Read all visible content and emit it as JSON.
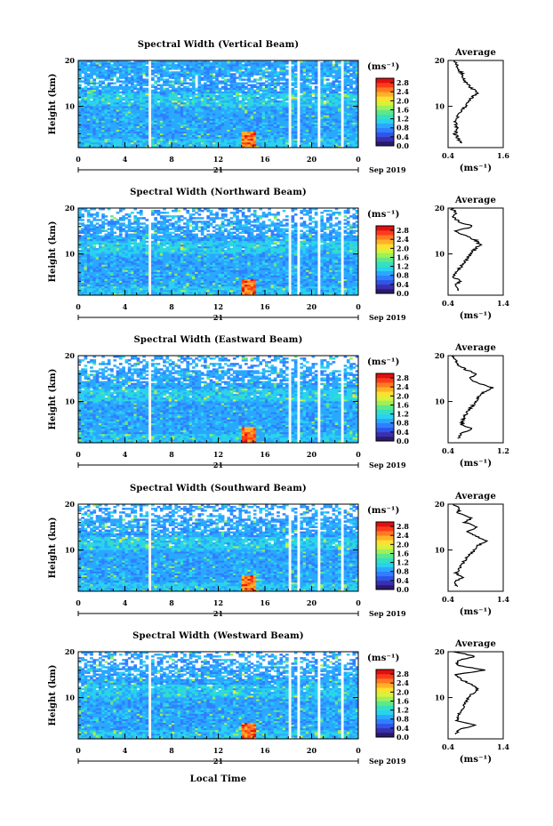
{
  "figure": {
    "xlabel": "Local Time",
    "date_label": "Sep 2019",
    "day_label": "21",
    "ylabel": "Height (km)",
    "cbar_unit": "(ms⁻¹)",
    "avg_title": "Average",
    "avg_xlabel": "(ms⁻¹)"
  },
  "chart_data": [
    {
      "type": "heatmap",
      "title": "Spectral Width (Vertical Beam)",
      "x_ticks": [
        "0",
        "4",
        "8",
        "12",
        "16",
        "20",
        "0"
      ],
      "y_ticks": [
        "20",
        "10"
      ],
      "xlim": [
        0,
        24
      ],
      "ylim": [
        1,
        20
      ],
      "colorbar_ticks": [
        "2.8",
        "2.4",
        "2.0",
        "1.6",
        "1.2",
        "0.8",
        "0.4",
        "0.0"
      ],
      "colorbar_range": [
        0,
        3.0
      ],
      "avg_profile": {
        "xlim": [
          0.4,
          1.6
        ],
        "x_ticks": [
          "0.4",
          "1.6"
        ],
        "y_ticks": [
          "20",
          "10"
        ],
        "ylim": [
          1,
          20
        ],
        "height": [
          2,
          3,
          4,
          5,
          6,
          7,
          8,
          9,
          10,
          11,
          12,
          13,
          14,
          15,
          16,
          17,
          18,
          19,
          20
        ],
        "width": [
          0.68,
          0.62,
          0.55,
          0.6,
          0.58,
          0.56,
          0.62,
          0.7,
          0.78,
          0.85,
          0.92,
          1.05,
          0.9,
          0.8,
          0.75,
          0.72,
          0.62,
          0.6,
          0.55
        ]
      }
    },
    {
      "type": "heatmap",
      "title": "Spectral Width (Northward Beam)",
      "x_ticks": [
        "0",
        "4",
        "8",
        "12",
        "16",
        "20",
        "0"
      ],
      "y_ticks": [
        "20",
        "10"
      ],
      "xlim": [
        0,
        24
      ],
      "ylim": [
        1,
        20
      ],
      "colorbar_ticks": [
        "2.8",
        "2.4",
        "2.0",
        "1.6",
        "1.2",
        "0.8",
        "0.4",
        "0.0"
      ],
      "colorbar_range": [
        0,
        3.0
      ],
      "avg_profile": {
        "xlim": [
          0.4,
          1.4
        ],
        "x_ticks": [
          "0.4",
          "1.4"
        ],
        "y_ticks": [
          "20",
          "10"
        ],
        "ylim": [
          1,
          20
        ],
        "height": [
          2,
          3,
          4,
          5,
          6,
          7,
          8,
          9,
          10,
          11,
          12,
          13,
          14,
          15,
          16,
          17,
          18,
          19,
          20
        ],
        "width": [
          0.6,
          0.52,
          0.62,
          0.5,
          0.55,
          0.62,
          0.68,
          0.75,
          0.8,
          0.88,
          0.98,
          0.9,
          0.7,
          0.55,
          0.85,
          0.6,
          0.5,
          0.55,
          0.45
        ]
      }
    },
    {
      "type": "heatmap",
      "title": "Spectral Width (Eastward Beam)",
      "x_ticks": [
        "0",
        "4",
        "8",
        "12",
        "16",
        "20",
        "0"
      ],
      "y_ticks": [
        "20",
        "10"
      ],
      "xlim": [
        0,
        24
      ],
      "ylim": [
        1,
        20
      ],
      "colorbar_ticks": [
        "2.8",
        "2.4",
        "2.0",
        "1.6",
        "1.2",
        "0.8",
        "0.4",
        "0.0"
      ],
      "colorbar_range": [
        0,
        3.0
      ],
      "avg_profile": {
        "xlim": [
          0.4,
          1.2
        ],
        "x_ticks": [
          "0.4",
          "1.2"
        ],
        "y_ticks": [
          "20",
          "10"
        ],
        "ylim": [
          1,
          20
        ],
        "height": [
          2,
          3,
          4,
          5,
          6,
          7,
          8,
          9,
          10,
          11,
          12,
          13,
          14,
          15,
          16,
          17,
          18,
          19,
          20
        ],
        "width": [
          0.55,
          0.58,
          0.75,
          0.6,
          0.62,
          0.65,
          0.7,
          0.75,
          0.8,
          0.85,
          0.92,
          1.05,
          0.85,
          0.7,
          0.8,
          0.65,
          0.55,
          0.5,
          0.48
        ]
      }
    },
    {
      "type": "heatmap",
      "title": "Spectral Width (Southward Beam)",
      "x_ticks": [
        "0",
        "4",
        "8",
        "12",
        "16",
        "20",
        "0"
      ],
      "y_ticks": [
        "20",
        "10"
      ],
      "xlim": [
        0,
        24
      ],
      "ylim": [
        1,
        20
      ],
      "colorbar_ticks": [
        "2.8",
        "2.4",
        "2.0",
        "1.6",
        "1.2",
        "0.8",
        "0.4",
        "0.0"
      ],
      "colorbar_range": [
        0,
        3.0
      ],
      "avg_profile": {
        "xlim": [
          0.4,
          1.4
        ],
        "x_ticks": [
          "0.4",
          "1.4"
        ],
        "y_ticks": [
          "20",
          "10"
        ],
        "ylim": [
          1,
          20
        ],
        "height": [
          2,
          3,
          4,
          5,
          6,
          7,
          8,
          9,
          10,
          11,
          12,
          13,
          14,
          15,
          16,
          17,
          18,
          19,
          20
        ],
        "width": [
          0.58,
          0.52,
          0.65,
          0.55,
          0.6,
          0.66,
          0.72,
          0.8,
          0.88,
          0.95,
          1.1,
          0.92,
          0.75,
          0.95,
          0.7,
          0.82,
          0.58,
          0.62,
          0.5
        ]
      }
    },
    {
      "type": "heatmap",
      "title": "Spectral Width (Westward Beam)",
      "x_ticks": [
        "0",
        "4",
        "8",
        "12",
        "16",
        "20",
        "0"
      ],
      "y_ticks": [
        "20",
        "10"
      ],
      "xlim": [
        0,
        24
      ],
      "ylim": [
        1,
        20
      ],
      "colorbar_ticks": [
        "2.8",
        "2.4",
        "2.0",
        "1.6",
        "1.2",
        "0.8",
        "0.4",
        "0.0"
      ],
      "colorbar_range": [
        0,
        3.0
      ],
      "avg_profile": {
        "xlim": [
          0.4,
          1.4
        ],
        "x_ticks": [
          "0.4",
          "1.4"
        ],
        "y_ticks": [
          "20",
          "10"
        ],
        "ylim": [
          1,
          20
        ],
        "height": [
          2,
          3,
          4,
          5,
          6,
          7,
          8,
          9,
          10,
          11,
          12,
          13,
          14,
          15,
          16,
          17,
          18,
          19,
          20
        ],
        "width": [
          0.55,
          0.6,
          0.9,
          0.55,
          0.58,
          0.62,
          0.68,
          0.72,
          0.78,
          0.85,
          0.95,
          0.8,
          0.62,
          0.55,
          1.05,
          0.6,
          0.55,
          0.9,
          0.5
        ]
      }
    }
  ]
}
